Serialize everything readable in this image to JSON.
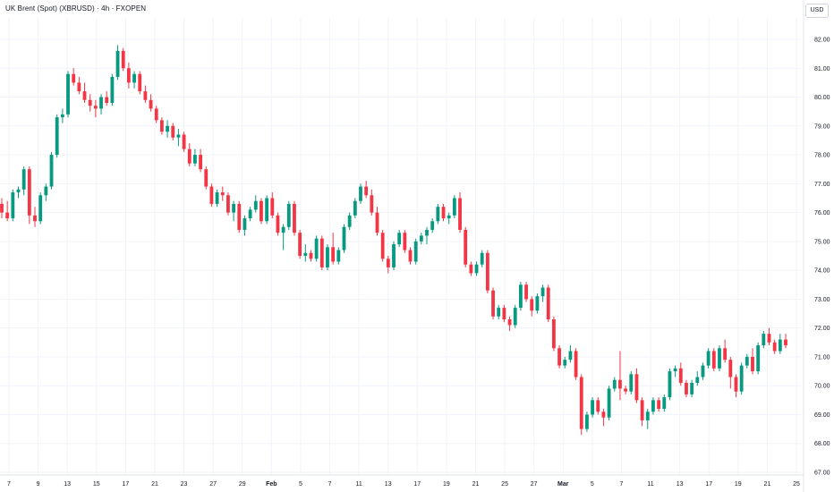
{
  "header": {
    "title": "UK Brent (Spot) (XBRUSD) · 4h · FXOPEN",
    "currency": "USD"
  },
  "colors": {
    "up": "#089981",
    "down": "#f23645",
    "grid": "#f0f3fa",
    "axis_text": "#131722"
  },
  "chart_data": {
    "type": "candlestick",
    "title": "UK Brent (Spot) (XBRUSD) · 4h · FXOPEN",
    "y_unit": "USD",
    "ylim": [
      66.7,
      82.5
    ],
    "y_ticks": [
      "67.00",
      "68.00",
      "69.00",
      "70.00",
      "71.00",
      "72.00",
      "73.00",
      "74.00",
      "75.00",
      "76.00",
      "77.00",
      "78.00",
      "79.00",
      "80.00",
      "81.00",
      "82.00"
    ],
    "x_ticks": [
      "7",
      "9",
      "13",
      "15",
      "17",
      "21",
      "23",
      "27",
      "29",
      "Feb",
      "5",
      "7",
      "11",
      "13",
      "17",
      "19",
      "21",
      "25",
      "27",
      "Mar",
      "5",
      "7",
      "11",
      "13",
      "17",
      "19",
      "21",
      "25"
    ],
    "series": [
      {
        "name": "XBRUSD",
        "points": [
          [
            76.3,
            76.5,
            75.8,
            76.0
          ],
          [
            76.0,
            76.4,
            75.7,
            75.8
          ],
          [
            75.8,
            76.8,
            75.7,
            76.7
          ],
          [
            76.7,
            76.9,
            76.5,
            76.8
          ],
          [
            76.8,
            77.6,
            76.6,
            77.5
          ],
          [
            77.5,
            77.6,
            75.6,
            75.9
          ],
          [
            75.9,
            76.2,
            75.5,
            75.7
          ],
          [
            75.7,
            76.7,
            75.6,
            76.6
          ],
          [
            76.6,
            77.0,
            76.4,
            76.9
          ],
          [
            76.9,
            78.1,
            76.8,
            78.0
          ],
          [
            78.0,
            79.4,
            77.9,
            79.3
          ],
          [
            79.3,
            79.6,
            79.1,
            79.4
          ],
          [
            79.4,
            80.9,
            79.3,
            80.8
          ],
          [
            80.8,
            81.0,
            80.4,
            80.5
          ],
          [
            80.5,
            80.7,
            80.1,
            80.2
          ],
          [
            80.2,
            80.5,
            79.8,
            79.9
          ],
          [
            79.9,
            80.1,
            79.5,
            79.7
          ],
          [
            79.7,
            79.9,
            79.3,
            79.6
          ],
          [
            79.6,
            80.1,
            79.4,
            80.0
          ],
          [
            80.0,
            80.2,
            79.7,
            79.8
          ],
          [
            79.8,
            80.8,
            79.7,
            80.7
          ],
          [
            80.7,
            81.8,
            80.6,
            81.6
          ],
          [
            81.6,
            81.7,
            80.9,
            81.0
          ],
          [
            81.0,
            81.2,
            80.3,
            80.5
          ],
          [
            80.5,
            80.9,
            80.3,
            80.8
          ],
          [
            80.8,
            80.9,
            80.1,
            80.2
          ],
          [
            80.2,
            80.4,
            79.8,
            79.9
          ],
          [
            79.9,
            80.1,
            79.5,
            79.6
          ],
          [
            79.6,
            79.7,
            79.1,
            79.2
          ],
          [
            79.2,
            79.3,
            78.7,
            78.8
          ],
          [
            78.8,
            79.2,
            78.6,
            79.0
          ],
          [
            79.0,
            79.1,
            78.5,
            78.6
          ],
          [
            78.6,
            78.9,
            78.3,
            78.7
          ],
          [
            78.7,
            78.8,
            78.1,
            78.2
          ],
          [
            78.2,
            78.4,
            77.6,
            77.7
          ],
          [
            77.7,
            78.2,
            77.6,
            78.0
          ],
          [
            78.0,
            78.2,
            77.4,
            77.5
          ],
          [
            77.5,
            77.6,
            76.8,
            76.9
          ],
          [
            76.9,
            77.0,
            76.2,
            76.3
          ],
          [
            76.3,
            76.8,
            76.2,
            76.7
          ],
          [
            76.7,
            76.9,
            76.4,
            76.6
          ],
          [
            76.6,
            76.7,
            75.9,
            76.0
          ],
          [
            76.0,
            76.4,
            75.7,
            76.3
          ],
          [
            76.3,
            76.4,
            75.3,
            75.4
          ],
          [
            75.4,
            75.9,
            75.2,
            75.8
          ],
          [
            75.8,
            76.2,
            75.7,
            76.1
          ],
          [
            76.1,
            76.6,
            76.0,
            76.4
          ],
          [
            76.4,
            76.5,
            75.6,
            75.7
          ],
          [
            75.7,
            76.6,
            75.6,
            76.5
          ],
          [
            76.5,
            76.7,
            75.8,
            75.9
          ],
          [
            75.9,
            76.0,
            75.2,
            75.3
          ],
          [
            75.3,
            75.6,
            74.7,
            75.5
          ],
          [
            75.5,
            76.4,
            75.4,
            76.3
          ],
          [
            76.3,
            76.4,
            75.2,
            75.3
          ],
          [
            75.3,
            75.4,
            74.4,
            74.5
          ],
          [
            74.5,
            74.9,
            74.3,
            74.6
          ],
          [
            74.6,
            74.7,
            74.3,
            74.4
          ],
          [
            74.4,
            75.2,
            74.3,
            75.1
          ],
          [
            75.1,
            75.2,
            74.0,
            74.1
          ],
          [
            74.1,
            74.9,
            74.0,
            74.8
          ],
          [
            74.8,
            75.3,
            74.2,
            74.3
          ],
          [
            74.3,
            74.8,
            74.2,
            74.7
          ],
          [
            74.7,
            75.6,
            74.6,
            75.5
          ],
          [
            75.5,
            76.0,
            75.4,
            75.9
          ],
          [
            75.9,
            76.5,
            75.8,
            76.4
          ],
          [
            76.4,
            77.0,
            76.3,
            76.9
          ],
          [
            76.9,
            77.1,
            76.5,
            76.6
          ],
          [
            76.6,
            76.8,
            75.9,
            76.0
          ],
          [
            76.0,
            76.2,
            75.2,
            75.3
          ],
          [
            75.3,
            75.4,
            74.3,
            74.4
          ],
          [
            74.4,
            74.5,
            73.9,
            74.1
          ],
          [
            74.1,
            75.0,
            74.0,
            74.9
          ],
          [
            74.9,
            75.4,
            74.8,
            75.3
          ],
          [
            75.3,
            75.4,
            74.6,
            74.7
          ],
          [
            74.7,
            74.8,
            74.2,
            74.3
          ],
          [
            74.3,
            75.1,
            74.2,
            75.0
          ],
          [
            75.0,
            75.3,
            74.9,
            75.2
          ],
          [
            75.2,
            75.5,
            74.9,
            75.4
          ],
          [
            75.4,
            75.8,
            75.3,
            75.7
          ],
          [
            75.7,
            76.3,
            75.6,
            76.2
          ],
          [
            76.2,
            76.3,
            75.7,
            75.8
          ],
          [
            75.8,
            76.0,
            75.6,
            75.9
          ],
          [
            75.9,
            76.6,
            75.8,
            76.5
          ],
          [
            76.5,
            76.7,
            75.3,
            75.4
          ],
          [
            75.4,
            75.5,
            74.1,
            74.2
          ],
          [
            74.2,
            74.3,
            73.8,
            73.9
          ],
          [
            73.9,
            74.3,
            73.8,
            74.2
          ],
          [
            74.2,
            74.7,
            74.1,
            74.6
          ],
          [
            74.6,
            74.7,
            73.2,
            73.3
          ],
          [
            73.3,
            73.4,
            72.3,
            72.4
          ],
          [
            72.4,
            72.8,
            72.3,
            72.7
          ],
          [
            72.7,
            72.8,
            72.2,
            72.3
          ],
          [
            72.3,
            72.4,
            71.9,
            72.1
          ],
          [
            72.1,
            72.8,
            72.0,
            72.7
          ],
          [
            72.7,
            73.6,
            72.6,
            73.5
          ],
          [
            73.5,
            73.6,
            72.9,
            73.0
          ],
          [
            73.0,
            73.1,
            72.4,
            72.6
          ],
          [
            72.6,
            73.2,
            72.5,
            73.1
          ],
          [
            73.1,
            73.5,
            72.9,
            73.4
          ],
          [
            73.4,
            73.5,
            72.2,
            72.3
          ],
          [
            72.3,
            72.4,
            71.2,
            71.3
          ],
          [
            71.3,
            71.4,
            70.6,
            70.7
          ],
          [
            70.7,
            71.0,
            70.6,
            70.9
          ],
          [
            70.9,
            71.4,
            70.8,
            71.2
          ],
          [
            71.2,
            71.3,
            70.2,
            70.3
          ],
          [
            70.3,
            70.4,
            68.3,
            68.5
          ],
          [
            68.5,
            69.1,
            68.4,
            69.0
          ],
          [
            69.0,
            69.6,
            68.9,
            69.5
          ],
          [
            69.5,
            69.6,
            69.0,
            69.1
          ],
          [
            69.1,
            69.2,
            68.6,
            68.9
          ],
          [
            68.9,
            70.0,
            68.8,
            69.9
          ],
          [
            69.9,
            70.3,
            69.8,
            70.2
          ],
          [
            70.2,
            71.2,
            69.5,
            69.9
          ],
          [
            69.9,
            70.0,
            69.7,
            69.8
          ],
          [
            69.8,
            70.5,
            69.7,
            70.4
          ],
          [
            70.4,
            70.6,
            69.4,
            69.5
          ],
          [
            69.5,
            69.6,
            68.6,
            68.8
          ],
          [
            68.8,
            69.2,
            68.5,
            69.1
          ],
          [
            69.1,
            69.6,
            69.0,
            69.5
          ],
          [
            69.5,
            69.6,
            69.1,
            69.2
          ],
          [
            69.2,
            69.7,
            69.1,
            69.6
          ],
          [
            69.6,
            70.6,
            69.5,
            70.5
          ],
          [
            70.5,
            70.7,
            70.3,
            70.6
          ],
          [
            70.6,
            70.8,
            70.0,
            70.1
          ],
          [
            70.1,
            70.2,
            69.6,
            69.7
          ],
          [
            69.7,
            70.2,
            69.6,
            70.1
          ],
          [
            70.1,
            70.5,
            70.0,
            70.3
          ],
          [
            70.3,
            70.8,
            70.2,
            70.7
          ],
          [
            70.7,
            71.3,
            70.6,
            71.2
          ],
          [
            71.2,
            71.3,
            70.5,
            70.6
          ],
          [
            70.6,
            71.4,
            70.5,
            71.3
          ],
          [
            71.3,
            71.6,
            70.8,
            70.9
          ],
          [
            70.9,
            71.0,
            69.9,
            70.3
          ],
          [
            70.3,
            70.4,
            69.6,
            69.8
          ],
          [
            69.8,
            70.8,
            69.7,
            70.7
          ],
          [
            70.7,
            71.1,
            70.6,
            71.0
          ],
          [
            71.0,
            71.3,
            70.4,
            70.5
          ],
          [
            70.5,
            71.5,
            70.4,
            71.4
          ],
          [
            71.4,
            71.9,
            71.3,
            71.8
          ],
          [
            71.8,
            72.0,
            71.4,
            71.5
          ],
          [
            71.5,
            71.6,
            71.1,
            71.2
          ],
          [
            71.2,
            71.8,
            71.1,
            71.6
          ],
          [
            71.6,
            71.8,
            71.3,
            71.4
          ]
        ]
      }
    ]
  }
}
